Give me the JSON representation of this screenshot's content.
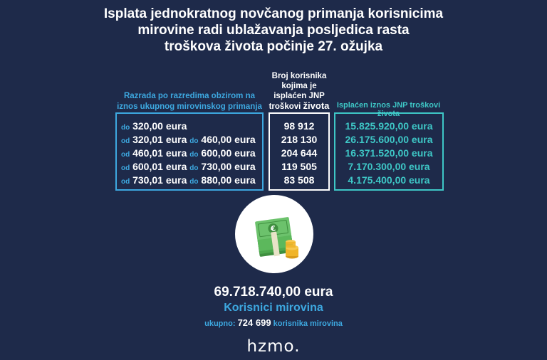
{
  "title": {
    "line1": "Isplata jednokratnog novčanog primanja korisnicima",
    "line2": "mirovine radi ublažavanja posljedica rasta",
    "line3": "troškova života počinje 27. ožujka"
  },
  "columns": {
    "ranges_header": "Razrada po razredima obzirom na iznos ukupnog mirovinskog primanja",
    "users_header_line1": "Broj korisnika kojima je isplaćen JNP",
    "users_header_line2": "troškovi",
    "users_header_line3": "života",
    "paid_header": "Isplaćen iznos  JNP troškovi života"
  },
  "rows": [
    {
      "from_prefix": "do",
      "from": "320,00 eura",
      "to_prefix": "",
      "to": "",
      "users": "98 912",
      "paid": "15.825.920,00 eura"
    },
    {
      "from_prefix": "od",
      "from": "320,01 eura",
      "to_prefix": "do",
      "to": "460,00 eura",
      "users": "218 130",
      "paid": "26.175.600,00 eura"
    },
    {
      "from_prefix": "od",
      "from": "460,01 eura",
      "to_prefix": "do",
      "to": "600,00 eura",
      "users": "204 644",
      "paid": "16.371.520,00 eura"
    },
    {
      "from_prefix": "od",
      "from": "600,01 eura",
      "to_prefix": "do",
      "to": "730,00 eura",
      "users": "119 505",
      "paid": "7.170.300,00 eura"
    },
    {
      "from_prefix": "od",
      "from": "730,01 eura",
      "to_prefix": "do",
      "to": "880,00 eura",
      "users": "83 508",
      "paid": "4.175.400,00 eura"
    }
  ],
  "summary": {
    "total": "69.718.740,00 eura",
    "subtitle": "Korisnici mirovina",
    "count_prefix": "ukupno:",
    "count": "724 699",
    "count_suffix": "korisnika mirovina"
  },
  "logo": "hzmo.",
  "colors": {
    "background": "#1e2a4a",
    "blue_accent": "#3da8e0",
    "teal_accent": "#3ec7c6",
    "money_green": "#5cb85c",
    "coin_gold": "#f0b429"
  },
  "icons": {
    "illustration": "money-stack-icon"
  }
}
